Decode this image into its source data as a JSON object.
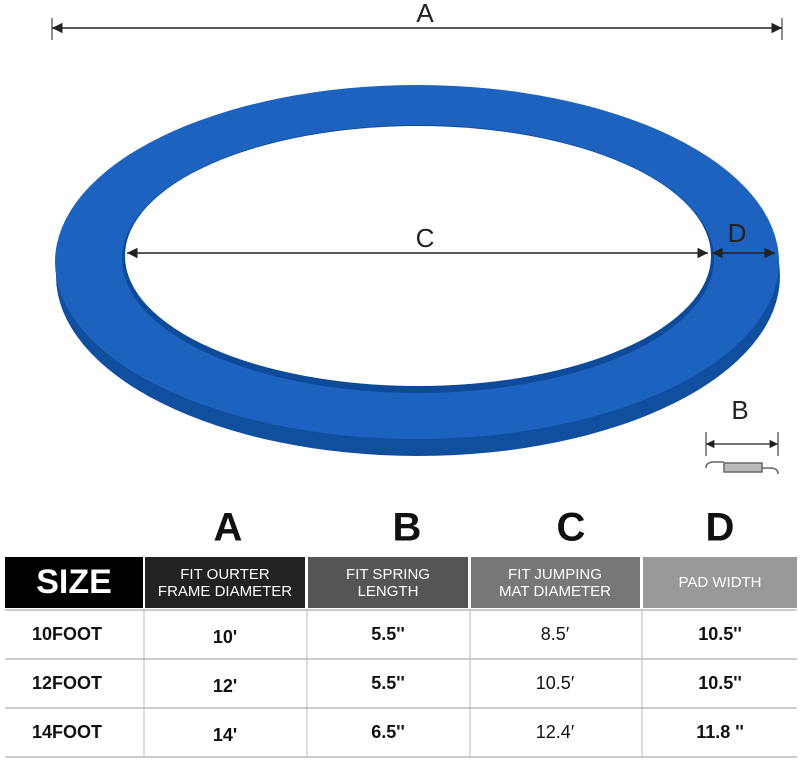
{
  "diagram": {
    "labels": {
      "a": "A",
      "c": "C",
      "d": "D",
      "b": "B"
    }
  },
  "table": {
    "column_letters": [
      "A",
      "B",
      "C",
      "D"
    ],
    "header": [
      "SIZE",
      "FIT OURTER",
      "FRAME DIAMETER",
      "FIT SPRING",
      "LENGTH",
      "FIT JUMPING",
      "MAT DIAMETER",
      "PAD WIDTH"
    ],
    "rows": [
      [
        "10FOOT",
        "10'",
        "5.5''",
        "8.5′",
        "10.5''"
      ],
      [
        "12FOOT",
        "12'",
        "5.5''",
        "10.5′",
        "10.5''"
      ],
      [
        "14FOOT",
        "14'",
        "6.5''",
        "12.4′",
        "11.8 ''"
      ]
    ]
  }
}
